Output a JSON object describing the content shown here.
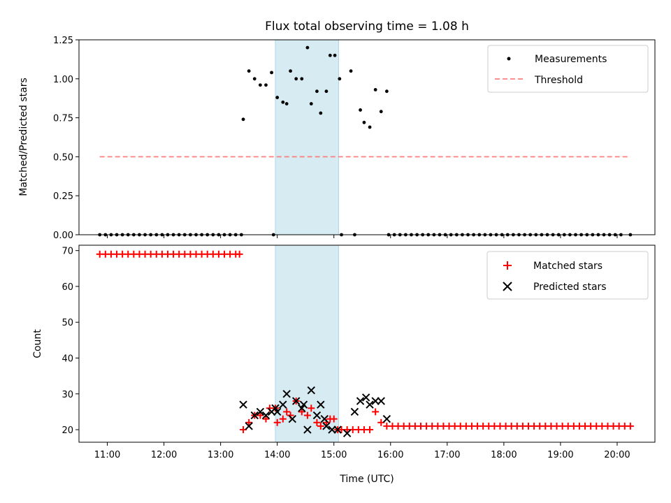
{
  "title": "Flux total observing time = 1.08 h",
  "colors": {
    "measurements": "#000000",
    "threshold": "#ff7f7f",
    "matched": "#ff0000",
    "predicted": "#000000",
    "shade": "#add8e6"
  },
  "chart_data": [
    {
      "type": "scatter",
      "ylabel": "Matched/Predicted stars",
      "xlabel": "",
      "ylim": [
        0,
        1.25
      ],
      "xlim": [
        "10:30",
        "20:40"
      ],
      "yticks": [
        "0.00",
        "0.25",
        "0.50",
        "0.75",
        "1.00",
        "1.25"
      ],
      "shaded_span": [
        "13:58",
        "15:05"
      ],
      "legend": {
        "placement": "top-right",
        "entries": [
          "Measurements",
          "Threshold"
        ]
      },
      "threshold": {
        "y": 0.5,
        "x": [
          "10:52",
          "20:14"
        ]
      },
      "series": [
        {
          "name": "Measurements",
          "points": [
            [
              "10:52",
              0
            ],
            [
              "10:58",
              0
            ],
            [
              "11:04",
              0
            ],
            [
              "11:10",
              0
            ],
            [
              "11:16",
              0
            ],
            [
              "11:22",
              0
            ],
            [
              "11:28",
              0
            ],
            [
              "11:34",
              0
            ],
            [
              "11:40",
              0
            ],
            [
              "11:46",
              0
            ],
            [
              "11:52",
              0
            ],
            [
              "11:58",
              0
            ],
            [
              "12:04",
              0
            ],
            [
              "12:10",
              0
            ],
            [
              "12:16",
              0
            ],
            [
              "12:22",
              0
            ],
            [
              "12:28",
              0
            ],
            [
              "12:34",
              0
            ],
            [
              "12:40",
              0
            ],
            [
              "12:46",
              0
            ],
            [
              "12:52",
              0
            ],
            [
              "12:58",
              0
            ],
            [
              "13:04",
              0
            ],
            [
              "13:10",
              0
            ],
            [
              "13:16",
              0
            ],
            [
              "13:22",
              0
            ],
            [
              "13:24",
              0.74
            ],
            [
              "13:30",
              1.05
            ],
            [
              "13:36",
              1.0
            ],
            [
              "13:42",
              0.96
            ],
            [
              "13:48",
              0.96
            ],
            [
              "13:54",
              1.04
            ],
            [
              "13:56",
              0
            ],
            [
              "14:00",
              0.88
            ],
            [
              "14:06",
              0.85
            ],
            [
              "14:10",
              0.84
            ],
            [
              "14:14",
              1.05
            ],
            [
              "14:20",
              1.0
            ],
            [
              "14:26",
              1.0
            ],
            [
              "14:32",
              1.2
            ],
            [
              "14:36",
              0.84
            ],
            [
              "14:42",
              0.92
            ],
            [
              "14:46",
              0.78
            ],
            [
              "14:52",
              0.92
            ],
            [
              "14:56",
              1.15
            ],
            [
              "15:01",
              1.15
            ],
            [
              "15:06",
              1.0
            ],
            [
              "15:08",
              0
            ],
            [
              "15:18",
              1.05
            ],
            [
              "15:22",
              0
            ],
            [
              "15:28",
              0.8
            ],
            [
              "15:32",
              0.72
            ],
            [
              "15:38",
              0.69
            ],
            [
              "15:44",
              0.93
            ],
            [
              "15:50",
              0.79
            ],
            [
              "15:56",
              0.92
            ],
            [
              "15:58",
              0
            ],
            [
              "16:04",
              0
            ],
            [
              "16:10",
              0
            ],
            [
              "16:16",
              0
            ],
            [
              "16:22",
              0
            ],
            [
              "16:28",
              0
            ],
            [
              "16:34",
              0
            ],
            [
              "16:40",
              0
            ],
            [
              "16:46",
              0
            ],
            [
              "16:52",
              0
            ],
            [
              "16:58",
              0
            ],
            [
              "17:04",
              0
            ],
            [
              "17:10",
              0
            ],
            [
              "17:16",
              0
            ],
            [
              "17:22",
              0
            ],
            [
              "17:28",
              0
            ],
            [
              "17:34",
              0
            ],
            [
              "17:40",
              0
            ],
            [
              "17:46",
              0
            ],
            [
              "17:52",
              0
            ],
            [
              "17:58",
              0
            ],
            [
              "18:04",
              0
            ],
            [
              "18:10",
              0
            ],
            [
              "18:16",
              0
            ],
            [
              "18:22",
              0
            ],
            [
              "18:28",
              0
            ],
            [
              "18:34",
              0
            ],
            [
              "18:40",
              0
            ],
            [
              "18:46",
              0
            ],
            [
              "18:52",
              0
            ],
            [
              "18:58",
              0
            ],
            [
              "19:04",
              0
            ],
            [
              "19:10",
              0
            ],
            [
              "19:16",
              0
            ],
            [
              "19:22",
              0
            ],
            [
              "19:28",
              0
            ],
            [
              "19:34",
              0
            ],
            [
              "19:40",
              0
            ],
            [
              "19:46",
              0
            ],
            [
              "19:52",
              0
            ],
            [
              "19:58",
              0
            ],
            [
              "20:04",
              0
            ],
            [
              "20:14",
              0
            ]
          ]
        }
      ]
    },
    {
      "type": "scatter",
      "ylabel": "Count",
      "xlabel": "Time (UTC)",
      "ylim": [
        16.5,
        71.5
      ],
      "xlim": [
        "10:30",
        "20:40"
      ],
      "yticks": [
        "20",
        "30",
        "40",
        "50",
        "60",
        "70"
      ],
      "xticks": [
        "11:00",
        "12:00",
        "13:00",
        "14:00",
        "15:00",
        "16:00",
        "17:00",
        "18:00",
        "19:00",
        "20:00"
      ],
      "shaded_span": [
        "13:58",
        "15:05"
      ],
      "legend": {
        "placement": "top-right",
        "entries": [
          "Matched stars",
          "Predicted stars"
        ]
      },
      "series": [
        {
          "name": "Matched stars",
          "marker": "plus",
          "points": [
            [
              "10:52",
              69
            ],
            [
              "10:58",
              69
            ],
            [
              "11:04",
              69
            ],
            [
              "11:10",
              69
            ],
            [
              "11:16",
              69
            ],
            [
              "11:22",
              69
            ],
            [
              "11:28",
              69
            ],
            [
              "11:34",
              69
            ],
            [
              "11:40",
              69
            ],
            [
              "11:46",
              69
            ],
            [
              "11:52",
              69
            ],
            [
              "11:58",
              69
            ],
            [
              "12:04",
              69
            ],
            [
              "12:10",
              69
            ],
            [
              "12:16",
              69
            ],
            [
              "12:22",
              69
            ],
            [
              "12:28",
              69
            ],
            [
              "12:34",
              69
            ],
            [
              "12:40",
              69
            ],
            [
              "12:46",
              69
            ],
            [
              "12:52",
              69
            ],
            [
              "12:58",
              69
            ],
            [
              "13:04",
              69
            ],
            [
              "13:10",
              69
            ],
            [
              "13:16",
              69
            ],
            [
              "13:20",
              69
            ],
            [
              "13:24",
              20
            ],
            [
              "13:30",
              22
            ],
            [
              "13:36",
              24
            ],
            [
              "13:42",
              24
            ],
            [
              "13:48",
              23
            ],
            [
              "13:52",
              26
            ],
            [
              "13:58",
              26
            ],
            [
              "14:00",
              22
            ],
            [
              "14:06",
              23
            ],
            [
              "14:10",
              25
            ],
            [
              "14:14",
              24
            ],
            [
              "14:20",
              28
            ],
            [
              "14:26",
              25
            ],
            [
              "14:32",
              24
            ],
            [
              "14:36",
              26
            ],
            [
              "14:42",
              22
            ],
            [
              "14:46",
              21
            ],
            [
              "14:52",
              22
            ],
            [
              "14:56",
              23
            ],
            [
              "15:00",
              23
            ],
            [
              "15:04",
              20
            ],
            [
              "15:08",
              20
            ],
            [
              "15:14",
              20
            ],
            [
              "15:20",
              20
            ],
            [
              "15:26",
              20
            ],
            [
              "15:32",
              20
            ],
            [
              "15:38",
              20
            ],
            [
              "15:44",
              25
            ],
            [
              "15:50",
              22
            ],
            [
              "15:56",
              21
            ],
            [
              "16:02",
              21
            ],
            [
              "16:08",
              21
            ],
            [
              "16:14",
              21
            ],
            [
              "16:20",
              21
            ],
            [
              "16:26",
              21
            ],
            [
              "16:32",
              21
            ],
            [
              "16:38",
              21
            ],
            [
              "16:44",
              21
            ],
            [
              "16:50",
              21
            ],
            [
              "16:56",
              21
            ],
            [
              "17:02",
              21
            ],
            [
              "17:08",
              21
            ],
            [
              "17:14",
              21
            ],
            [
              "17:20",
              21
            ],
            [
              "17:26",
              21
            ],
            [
              "17:32",
              21
            ],
            [
              "17:38",
              21
            ],
            [
              "17:44",
              21
            ],
            [
              "17:50",
              21
            ],
            [
              "17:56",
              21
            ],
            [
              "18:02",
              21
            ],
            [
              "18:08",
              21
            ],
            [
              "18:14",
              21
            ],
            [
              "18:20",
              21
            ],
            [
              "18:26",
              21
            ],
            [
              "18:32",
              21
            ],
            [
              "18:38",
              21
            ],
            [
              "18:44",
              21
            ],
            [
              "18:50",
              21
            ],
            [
              "18:56",
              21
            ],
            [
              "19:02",
              21
            ],
            [
              "19:08",
              21
            ],
            [
              "19:14",
              21
            ],
            [
              "19:20",
              21
            ],
            [
              "19:26",
              21
            ],
            [
              "19:32",
              21
            ],
            [
              "19:38",
              21
            ],
            [
              "19:44",
              21
            ],
            [
              "19:50",
              21
            ],
            [
              "19:56",
              21
            ],
            [
              "20:02",
              21
            ],
            [
              "20:08",
              21
            ],
            [
              "20:14",
              21
            ]
          ]
        },
        {
          "name": "Predicted stars",
          "marker": "x",
          "points": [
            [
              "13:24",
              27
            ],
            [
              "13:30",
              21
            ],
            [
              "13:36",
              24
            ],
            [
              "13:42",
              25
            ],
            [
              "13:48",
              24
            ],
            [
              "13:54",
              25
            ],
            [
              "13:58",
              26
            ],
            [
              "14:00",
              25
            ],
            [
              "14:06",
              27
            ],
            [
              "14:10",
              30
            ],
            [
              "14:16",
              23
            ],
            [
              "14:20",
              28
            ],
            [
              "14:26",
              26
            ],
            [
              "14:28",
              27
            ],
            [
              "14:32",
              20
            ],
            [
              "14:36",
              31
            ],
            [
              "14:42",
              24
            ],
            [
              "14:46",
              27
            ],
            [
              "14:50",
              23
            ],
            [
              "14:52",
              21
            ],
            [
              "14:58",
              20
            ],
            [
              "15:04",
              20
            ],
            [
              "15:14",
              19
            ],
            [
              "15:22",
              25
            ],
            [
              "15:28",
              28
            ],
            [
              "15:34",
              29
            ],
            [
              "15:38",
              27
            ],
            [
              "15:44",
              28
            ],
            [
              "15:50",
              28
            ],
            [
              "15:56",
              23
            ]
          ]
        }
      ]
    }
  ]
}
